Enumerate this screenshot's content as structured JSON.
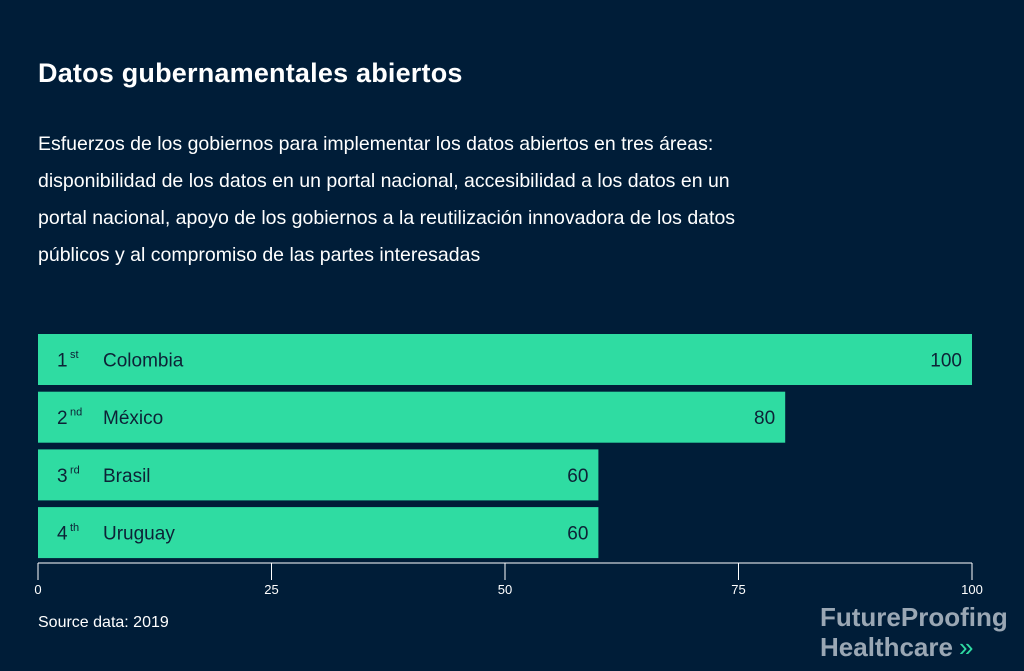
{
  "colors": {
    "background": "#001d38",
    "bar": "#2fdca2",
    "text_dark": "#0d2236",
    "axis": "#ffffff",
    "brand": "#9aa7b4",
    "brand_accent": "#2fdca2"
  },
  "brand": {
    "line1": "FutureProofing",
    "line2": "Healthcare",
    "chevron": "»"
  },
  "source": "Source data: 2019",
  "chart_data": {
    "type": "bar",
    "orientation": "horizontal",
    "title": "Datos gubernamentales abiertos",
    "subtitle": "Esfuerzos de los gobiernos para implementar los datos abiertos en tres áreas: disponibilidad de los datos en un portal nacional, accesibilidad a los datos en un portal nacional, apoyo de los gobiernos a la reutilización innovadora de los datos públicos y al compromiso de las partes interesadas",
    "categories": [
      "Colombia",
      "México",
      "Brasil",
      "Uruguay"
    ],
    "ranks": [
      {
        "num": "1",
        "suffix": "st"
      },
      {
        "num": "2",
        "suffix": "nd"
      },
      {
        "num": "3",
        "suffix": "rd"
      },
      {
        "num": "4",
        "suffix": "th"
      }
    ],
    "values": [
      100,
      80,
      60,
      60
    ],
    "xlim": [
      0,
      100
    ],
    "xticks": [
      0,
      25,
      50,
      75,
      100
    ],
    "grid": false
  }
}
